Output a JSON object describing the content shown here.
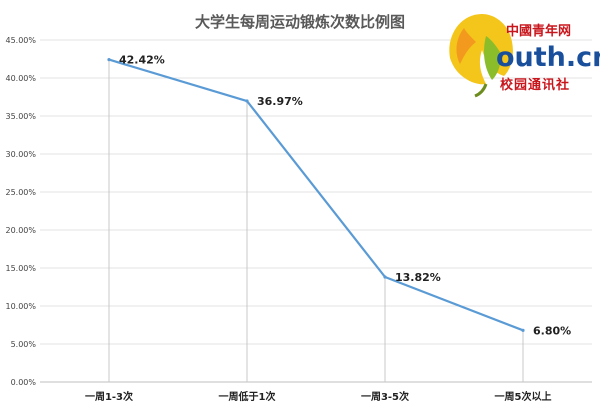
{
  "logo": {
    "top": "中國青年网",
    "url": "outh.cn",
    "sub": "校园通讯社"
  },
  "chart_data": {
    "type": "line",
    "title": "大学生每周运动锻炼次数比例图",
    "categories": [
      "一周1-3次",
      "一周低于1次",
      "一周3-5次",
      "一周5次以上"
    ],
    "values": [
      42.42,
      36.97,
      13.82,
      6.8
    ],
    "data_labels": [
      "42.42%",
      "36.97%",
      "13.82%",
      "6.80%"
    ],
    "ylim": [
      0,
      45
    ],
    "yticks": [
      0,
      5,
      10,
      15,
      20,
      25,
      30,
      35,
      40,
      45
    ],
    "ytick_labels": [
      "0.00%",
      "5.00%",
      "10.00%",
      "15.00%",
      "20.00%",
      "25.00%",
      "30.00%",
      "35.00%",
      "40.00%",
      "45.00%"
    ],
    "grid": true,
    "drop_lines": true,
    "line_color": "#5b9bd5",
    "xlabel": "",
    "ylabel": ""
  }
}
